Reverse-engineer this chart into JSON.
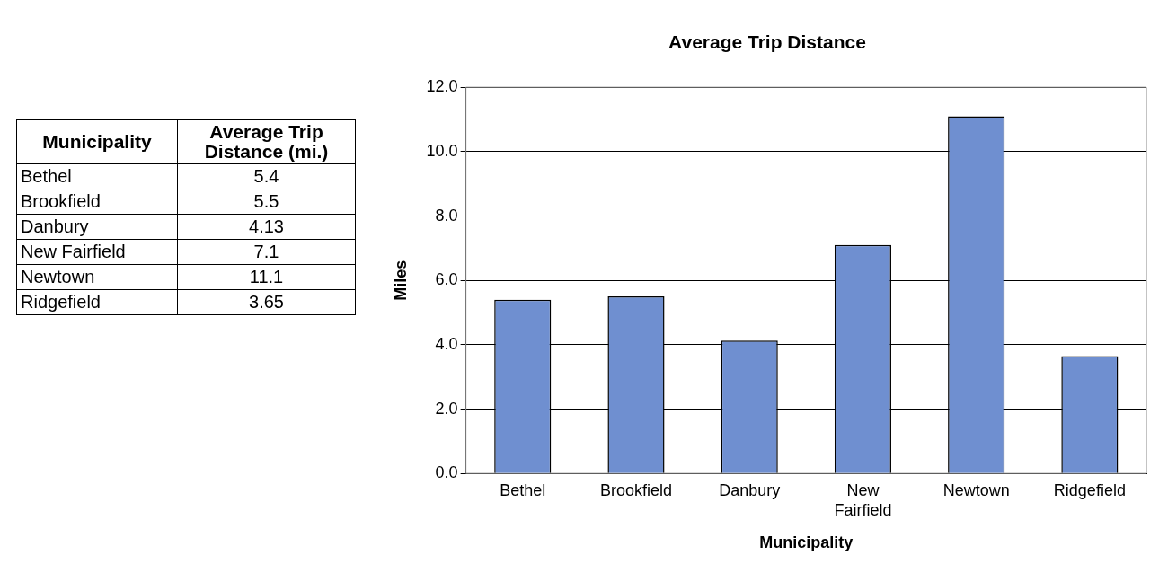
{
  "chart_data": [
    {
      "type": "other",
      "annotations": [
        "Municipality",
        "Average Trip Distance (mi.)",
        "Bethel",
        "5.4",
        "Brookfield",
        "5.5",
        "Danbury",
        "4.13",
        "New Fairfield",
        "7.1",
        "Newtown",
        "11.1",
        "Ridgefield",
        "3.65"
      ]
    },
    {
      "type": "bar",
      "title": "Average Trip Distance",
      "xlabel": "Municipality",
      "ylabel": "Miles",
      "categories": [
        "Bethel",
        "Brookfield",
        "Danbury",
        "New Fairfield",
        "Newtown",
        "Ridgefield"
      ],
      "values": [
        5.4,
        5.5,
        4.13,
        7.1,
        11.1,
        3.65
      ],
      "color": "#6f8fd0",
      "ylim": [
        0,
        12
      ],
      "yticks": [
        {
          "value": 0,
          "label": "0.0"
        },
        {
          "value": 2,
          "label": "2.0"
        },
        {
          "value": 4,
          "label": "4.0"
        },
        {
          "value": 6,
          "label": "6.0"
        },
        {
          "value": 8,
          "label": "8.0"
        },
        {
          "value": 10,
          "label": "10.0"
        },
        {
          "value": 12,
          "label": "12.0"
        }
      ],
      "grid": "y",
      "legend": false
    }
  ]
}
